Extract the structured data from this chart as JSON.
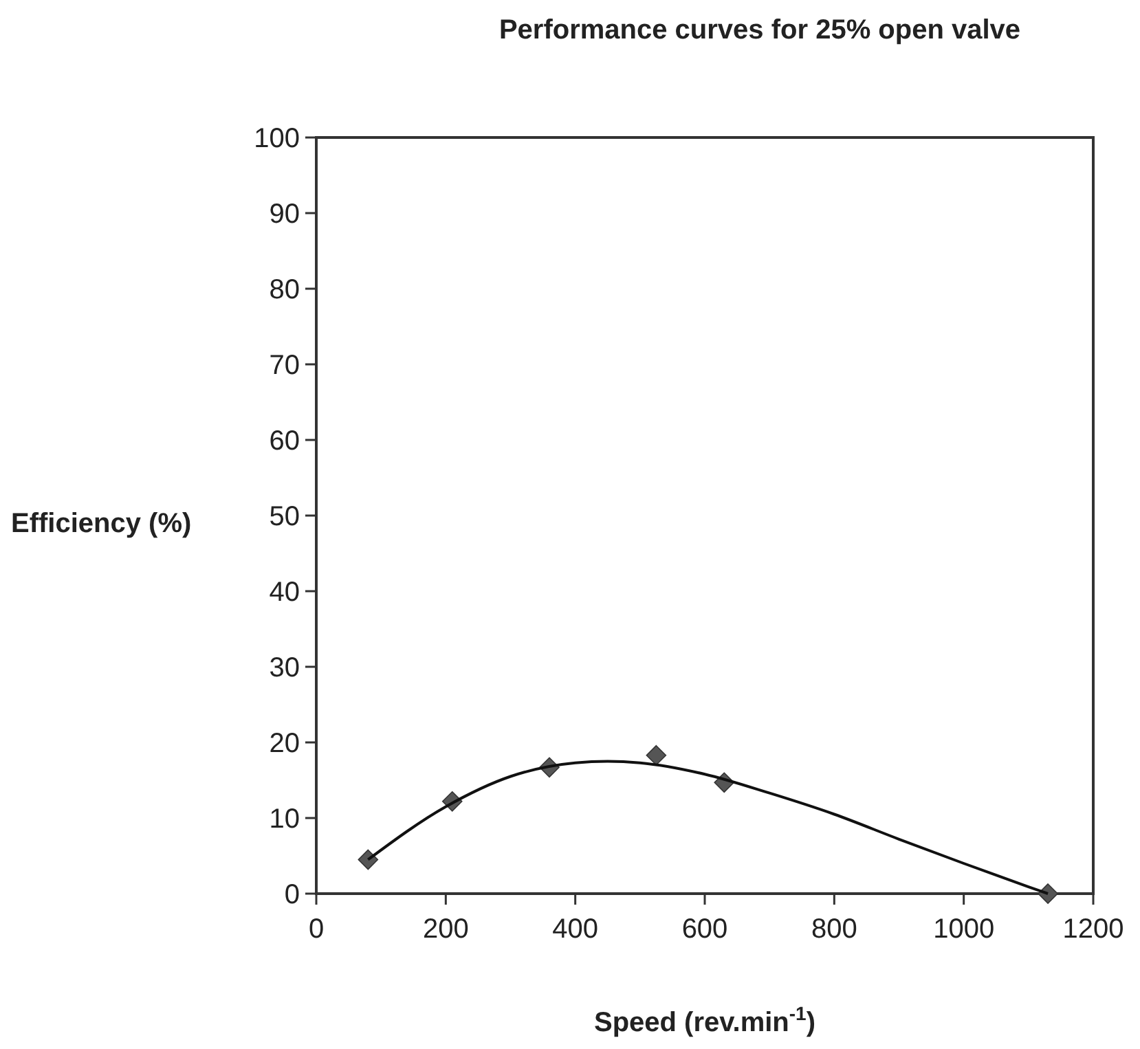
{
  "chart_data": {
    "type": "scatter",
    "title": "Performance curves for 25% open valve",
    "xlabel": "Speed (rev.min$^{-1}$)",
    "ylabel": "Efficiency (%)",
    "xlim": [
      0,
      1200
    ],
    "xticks": [
      0,
      200,
      400,
      600,
      800,
      1000,
      1200
    ],
    "ylim": [
      0,
      100
    ],
    "yticks": [
      0,
      10,
      20,
      30,
      40,
      50,
      60,
      70,
      80,
      90,
      100
    ],
    "grid": false,
    "series": [
      {
        "color": "#555555",
        "marker": "diamond",
        "x": [
          80,
          210,
          360,
          525,
          630,
          1130
        ],
        "values": [
          4.5,
          12.2,
          16.7,
          18.3,
          14.7,
          0
        ]
      },
      {
        "type": "line",
        "color": "#111111",
        "marker": "none",
        "line_style": "solid",
        "x": [
          80,
          200,
          300,
          400,
          450,
          500,
          600,
          700,
          800,
          900,
          1000,
          1100,
          1130
        ],
        "values": [
          4.5,
          11.5,
          15.5,
          17.3,
          17.5,
          17.3,
          15.8,
          13.3,
          10.5,
          7.2,
          4,
          0.9,
          0
        ]
      }
    ]
  }
}
